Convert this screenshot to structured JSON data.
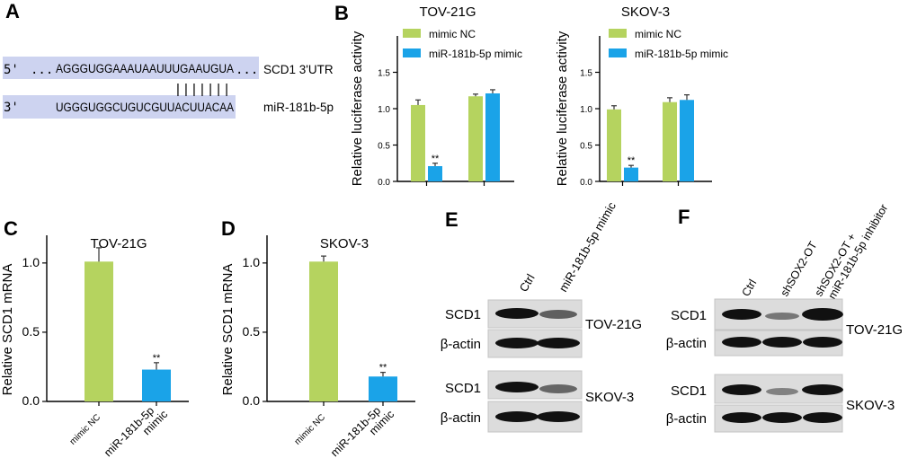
{
  "panel_labels": {
    "a": "A",
    "b": "B",
    "c": "C",
    "d": "D",
    "e": "E",
    "f": "F"
  },
  "colors": {
    "green": "#b5d35f",
    "blue": "#1aa3e8",
    "highlight": "#cdd3f0",
    "axis": "#000000"
  },
  "panel_a": {
    "prime5": "5'",
    "utr_dots": "...",
    "utr_seq": "AGGGUGGAAAUAAUUUGAAUGUA",
    "utr_tail": "...",
    "utr_label": "SCD1 3'UTR",
    "pairing": "|||||||",
    "prime3": "3'",
    "mir_seq": "UGGGUGGCUGUCGUUACUUACAA",
    "mir_label": "miR-181b-5p"
  },
  "panel_e": {
    "lanes": [
      "Ctrl",
      "miR-181b-5p mimic"
    ],
    "blots": [
      {
        "cell_line": "TOV-21G",
        "bands": [
          "SCD1",
          "β-actin"
        ],
        "scd1_intensity": [
          1.0,
          0.6
        ],
        "actin_intensity": [
          1.0,
          1.0
        ]
      },
      {
        "cell_line": "SKOV-3",
        "bands": [
          "SCD1",
          "β-actin"
        ],
        "scd1_intensity": [
          1.0,
          0.55
        ],
        "actin_intensity": [
          1.0,
          1.0
        ]
      }
    ]
  },
  "panel_f": {
    "lanes": [
      "Ctrl",
      "shSOX2-OT",
      "shSOX2-OT +",
      "miR-181b-5p inhibitor"
    ],
    "blots": [
      {
        "cell_line": "TOV-21G",
        "bands": [
          "SCD1",
          "β-actin"
        ],
        "scd1_intensity": [
          1.0,
          0.45,
          1.0
        ],
        "actin_intensity": [
          1.0,
          1.0,
          1.0
        ]
      },
      {
        "cell_line": "SKOV-3",
        "bands": [
          "SCD1",
          "β-actin"
        ],
        "scd1_intensity": [
          1.0,
          0.4,
          1.0
        ],
        "actin_intensity": [
          1.0,
          1.0,
          1.0
        ]
      }
    ]
  },
  "chart_data": [
    {
      "type": "bar",
      "id": "b1",
      "title": "TOV-21G",
      "ylabel": "Relative luciferase activity",
      "ylim": [
        0,
        2.0
      ],
      "yticks": [
        "0.0",
        "0.5",
        "1.0",
        "1.5"
      ],
      "ytick_values": [
        0,
        0.5,
        1.0,
        1.5
      ],
      "legend": [
        "mimic NC",
        "miR-181b-5p mimic"
      ],
      "groups": [
        {
          "values": [
            1.05,
            0.21
          ],
          "errors": [
            0.07,
            0.04
          ],
          "sig": [
            "",
            "**"
          ]
        },
        {
          "values": [
            1.17,
            1.21
          ],
          "errors": [
            0.03,
            0.05
          ],
          "sig": [
            "",
            ""
          ]
        }
      ]
    },
    {
      "type": "bar",
      "id": "b2",
      "title": "SKOV-3",
      "ylabel": "Relative luciferase activity",
      "ylim": [
        0,
        2.0
      ],
      "yticks": [
        "0.0",
        "0.5",
        "1.0",
        "1.5"
      ],
      "ytick_values": [
        0,
        0.5,
        1.0,
        1.5
      ],
      "legend": [
        "mimic NC",
        "miR-181b-5p mimic"
      ],
      "groups": [
        {
          "values": [
            0.99,
            0.19
          ],
          "errors": [
            0.05,
            0.03
          ],
          "sig": [
            "",
            "**"
          ]
        },
        {
          "values": [
            1.09,
            1.12
          ],
          "errors": [
            0.06,
            0.07
          ],
          "sig": [
            "",
            ""
          ]
        }
      ]
    },
    {
      "type": "bar",
      "id": "c",
      "title": "TOV-21G",
      "ylabel": "Relative SCD1 mRNA",
      "ylim": [
        0,
        1.2
      ],
      "yticks": [
        "0.0",
        "0.5",
        "1.0"
      ],
      "ytick_values": [
        0,
        0.5,
        1.0
      ],
      "categories": [
        "mimic NC",
        "miR-181b-5p mimic"
      ],
      "category_lines": [
        [
          "mimic NC"
        ],
        [
          "miR-181b-5p",
          "mimic"
        ]
      ],
      "values": [
        1.01,
        0.23
      ],
      "errors": [
        0.1,
        0.05
      ],
      "sig": [
        "",
        "**"
      ]
    },
    {
      "type": "bar",
      "id": "d",
      "title": "SKOV-3",
      "ylabel": "Relative SCD1 mRNA",
      "ylim": [
        0,
        1.2
      ],
      "yticks": [
        "0.0",
        "0.5",
        "1.0"
      ],
      "ytick_values": [
        0,
        0.5,
        1.0
      ],
      "categories": [
        "mimic NC",
        "miR-181b-5p mimic"
      ],
      "category_lines": [
        [
          "mimic NC"
        ],
        [
          "miR-181b-5p",
          "mimic"
        ]
      ],
      "values": [
        1.01,
        0.18
      ],
      "errors": [
        0.04,
        0.03
      ],
      "sig": [
        "",
        "**"
      ]
    }
  ]
}
